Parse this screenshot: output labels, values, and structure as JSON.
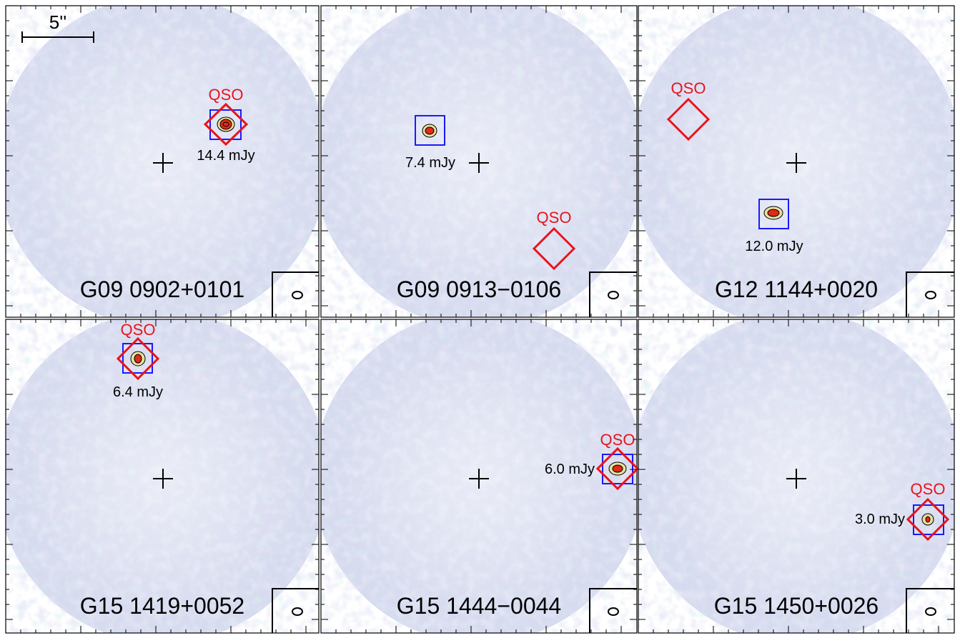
{
  "colors": {
    "qso_marker": "#e8141c",
    "source_box": "#1a1aff",
    "noise_field_a": "#c9cce8",
    "noise_field_b": "#d8ddee",
    "noise_cyan": "#a9d8d8",
    "source_core": "#e22a18",
    "frame": "#000000"
  },
  "scale_bar": {
    "label": "5''"
  },
  "panels": [
    {
      "name": "G09 0902+0101",
      "qso_label": "QSO",
      "flux": "14.4 mJy"
    },
    {
      "name": "G09 0913−0106",
      "qso_label": "QSO",
      "flux": "7.4 mJy"
    },
    {
      "name": "G12 1144+0020",
      "qso_label": "QSO",
      "flux": "12.0 mJy"
    },
    {
      "name": "G15 1419+0052",
      "qso_label": "QSO",
      "flux": "6.4 mJy"
    },
    {
      "name": "G15 1444−0044",
      "qso_label": "QSO",
      "flux": "6.0 mJy"
    },
    {
      "name": "G15 1450+0026",
      "qso_label": "QSO",
      "flux": "3.0 mJy"
    }
  ]
}
